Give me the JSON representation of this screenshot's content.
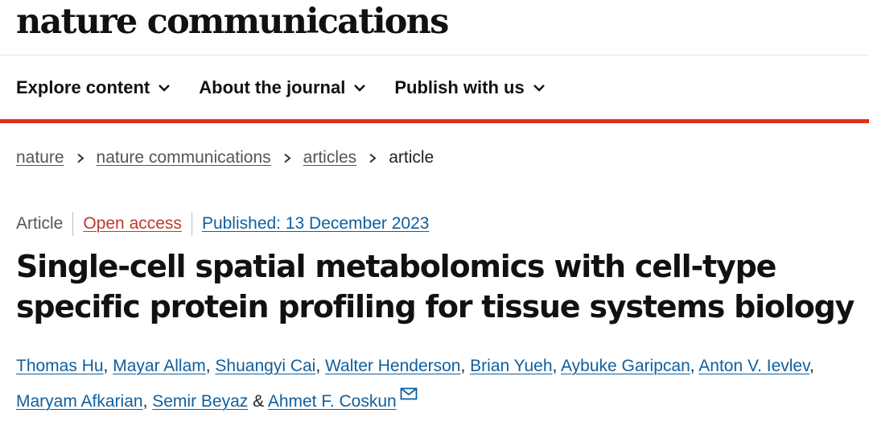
{
  "site": {
    "brand": "nature communications"
  },
  "nav": {
    "items": [
      {
        "label": "Explore content",
        "icon": "chevron-down-icon"
      },
      {
        "label": "About the journal",
        "icon": "chevron-down-icon"
      },
      {
        "label": "Publish with us",
        "icon": "chevron-down-icon"
      }
    ]
  },
  "breadcrumb": {
    "items": [
      "nature",
      "nature communications",
      "articles"
    ],
    "current": "article",
    "separator_icon": "chevron-right-icon"
  },
  "article": {
    "type": "Article",
    "access": "Open access",
    "published": "Published: 13 December 2023",
    "title": "Single-cell spatial metabolomics with cell-type specific protein profiling for tissue systems biology",
    "authors": [
      "Thomas Hu",
      "Mayar Allam",
      "Shuangyi Cai",
      "Walter Henderson",
      "Brian Yueh",
      "Aybuke Garipcan",
      "Anton V. Ievlev",
      "Maryam Afkarian",
      "Semir Beyaz",
      "Ahmet F. Coskun"
    ],
    "author_sep": ", ",
    "last_sep": " & ",
    "corresponding_icon": "email-icon"
  },
  "colors": {
    "accent_red": "#e0301e",
    "link_blue": "#0f5f9e",
    "open_access_red": "#c0392b"
  }
}
